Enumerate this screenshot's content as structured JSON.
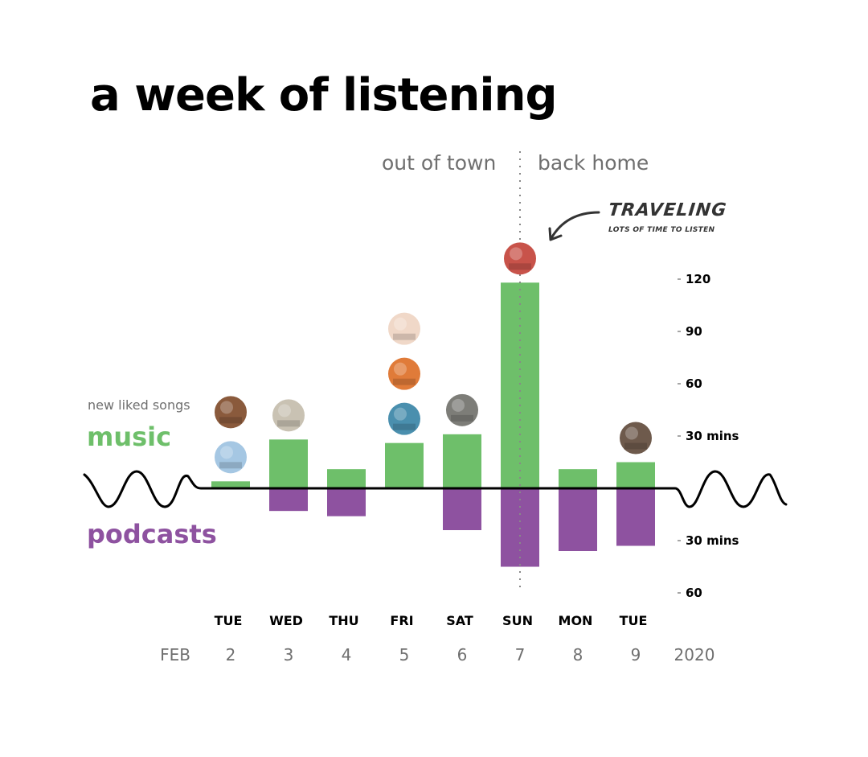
{
  "chart_data": {
    "type": "bar",
    "title": "a week of listening",
    "xlabel": "",
    "ylabel": "mins",
    "categories": [
      "TUE",
      "WED",
      "THU",
      "FRI",
      "SAT",
      "SUN",
      "MON",
      "TUE"
    ],
    "dates": [
      "2",
      "3",
      "4",
      "5",
      "6",
      "7",
      "8",
      "9"
    ],
    "month_label": "FEB",
    "year_label": "2020",
    "series": [
      {
        "name": "music",
        "direction": "up",
        "color": "#6ebf6a",
        "values": [
          4,
          28,
          11,
          26,
          31,
          118,
          11,
          15
        ]
      },
      {
        "name": "podcasts",
        "direction": "down",
        "color": "#8e52a0",
        "values": [
          0,
          13,
          16,
          0,
          24,
          45,
          36,
          33
        ]
      }
    ],
    "ylim_up": [
      0,
      120
    ],
    "ylim_down": [
      0,
      60
    ],
    "y_ticks_up": [
      {
        "value": 30,
        "label": "30 mins"
      },
      {
        "value": 60,
        "label": "60"
      },
      {
        "value": 90,
        "label": "90"
      },
      {
        "value": 120,
        "label": "120"
      }
    ],
    "y_ticks_down": [
      {
        "value": 30,
        "label": "30 mins"
      },
      {
        "value": 60,
        "label": "60"
      }
    ],
    "grid": false,
    "legend": "left",
    "new_liked_songs_per_day": [
      2,
      1,
      0,
      3,
      1,
      1,
      0,
      1
    ],
    "album_art_colors": [
      [
        "#a5c7e3",
        "#8a5a3c"
      ],
      [
        "#c9c2b3"
      ],
      [],
      [
        "#4a8fae",
        "#e07b39",
        "#f0d8c8"
      ],
      [
        "#7d7d78"
      ],
      [
        "#c8534a"
      ],
      [],
      [
        "#6e5a4c"
      ]
    ],
    "divider": {
      "after_category_index": 5,
      "left_label": "out of town",
      "right_label": "back home"
    },
    "annotation": {
      "title": "TRAVELING",
      "subtitle": "LOTS OF TIME TO LISTEN",
      "target_category_index": 5
    }
  },
  "legend": {
    "new_liked_songs": "new liked songs",
    "music": "music",
    "podcasts": "podcasts"
  }
}
